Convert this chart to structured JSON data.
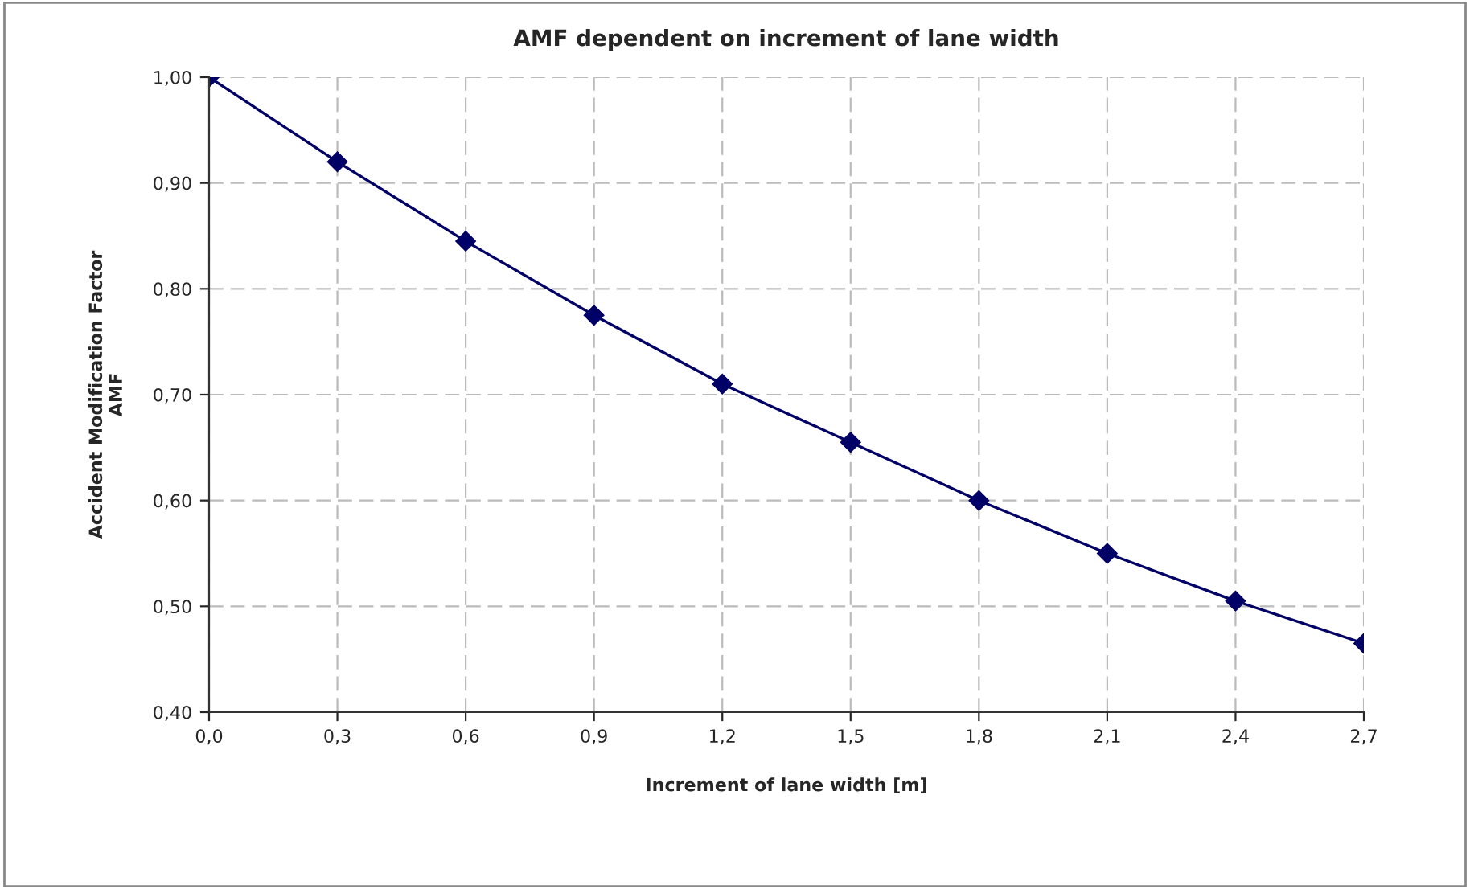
{
  "chart_data": {
    "type": "line",
    "title": "AMF dependent on increment of lane width",
    "xlabel": "Increment of lane width [m]",
    "ylabel": "Accident Modification Factor\nAMF",
    "categories": [
      "0,0",
      "0,3",
      "0,6",
      "0,9",
      "1,2",
      "1,5",
      "1,8",
      "2,1",
      "2,4",
      "2,7"
    ],
    "series": [
      {
        "color": "#000066",
        "values": [
          1.0,
          0.92,
          0.845,
          0.775,
          0.71,
          0.655,
          0.6,
          0.55,
          0.505,
          0.465
        ]
      }
    ],
    "ylim": [
      0.4,
      1.0
    ],
    "yticks": [
      {
        "value": 0.4,
        "label": "0,40"
      },
      {
        "value": 0.5,
        "label": "0,50"
      },
      {
        "value": 0.6,
        "label": "0,60"
      },
      {
        "value": 0.7,
        "label": "0,70"
      },
      {
        "value": 0.8,
        "label": "0,80"
      },
      {
        "value": 0.9,
        "label": "0,90"
      },
      {
        "value": 1.0,
        "label": "1,00"
      }
    ],
    "grid": true,
    "marker": "diamond",
    "line_style": "solid"
  }
}
